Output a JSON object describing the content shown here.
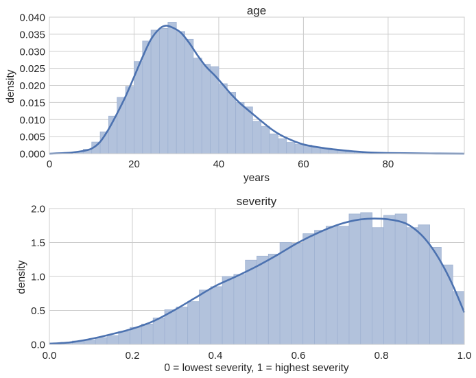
{
  "chart_data": [
    {
      "type": "bar",
      "subtype": "histogram-with-kde",
      "title": "age",
      "xlabel": "years",
      "ylabel": "density",
      "xlim": [
        0,
        98
      ],
      "ylim": [
        0,
        0.04
      ],
      "xticks": [
        0,
        20,
        40,
        60,
        80
      ],
      "xtick_labels": [
        "0",
        "20",
        "40",
        "60",
        "80"
      ],
      "yticks": [
        0,
        0.005,
        0.01,
        0.015,
        0.02,
        0.025,
        0.03,
        0.035,
        0.04
      ],
      "ytick_labels": [
        "0.000",
        "0.005",
        "0.010",
        "0.015",
        "0.020",
        "0.025",
        "0.030",
        "0.035",
        "0.040"
      ],
      "grid": true,
      "bars": {
        "bin_edges": [
          6,
          8,
          10,
          12,
          14,
          16,
          18,
          20,
          22,
          24,
          26,
          28,
          30,
          32,
          34,
          36,
          38,
          40,
          42,
          44,
          46,
          48,
          50,
          52,
          54,
          56,
          58,
          60,
          62,
          64,
          66,
          68,
          70,
          72,
          74,
          76,
          78,
          80
        ],
        "values": [
          0.0005,
          0.0013,
          0.0034,
          0.0064,
          0.011,
          0.0165,
          0.0197,
          0.027,
          0.033,
          0.0362,
          0.0367,
          0.0385,
          0.0358,
          0.0335,
          0.028,
          0.0262,
          0.0255,
          0.0205,
          0.018,
          0.015,
          0.0137,
          0.0095,
          0.008,
          0.0058,
          0.0044,
          0.0033,
          0.0027,
          0.0025,
          0.0018,
          0.0014,
          0.0012,
          0.0009,
          0.0007,
          0.0005,
          0.0003,
          0.0002,
          0.0001
        ]
      },
      "kde": {
        "x": [
          0,
          5,
          8,
          10,
          12,
          14,
          16,
          18,
          20,
          22,
          24,
          26,
          27.5,
          29,
          31,
          33,
          35,
          37,
          39,
          41,
          43,
          45,
          47,
          50,
          53,
          56,
          60,
          65,
          70,
          75,
          80,
          90,
          98
        ],
        "y": [
          0,
          0.0003,
          0.0008,
          0.0015,
          0.0035,
          0.0072,
          0.0118,
          0.0168,
          0.0225,
          0.0283,
          0.0335,
          0.0366,
          0.0375,
          0.037,
          0.0355,
          0.0325,
          0.0288,
          0.0255,
          0.023,
          0.0202,
          0.0173,
          0.0148,
          0.0127,
          0.0096,
          0.0067,
          0.0046,
          0.0027,
          0.0016,
          0.0009,
          0.0004,
          0.0002,
          5e-05,
          0
        ]
      },
      "color": "#4c72b0",
      "bar_fill": "#b2c2dc"
    },
    {
      "type": "bar",
      "subtype": "histogram-with-kde",
      "title": "severity",
      "xlabel": "0 = lowest severity, 1 = highest severity",
      "ylabel": "density",
      "xlim": [
        0,
        1
      ],
      "ylim": [
        0,
        2
      ],
      "xticks": [
        0,
        0.2,
        0.4,
        0.6,
        0.8,
        1.0
      ],
      "xtick_labels": [
        "0.0",
        "0.2",
        "0.4",
        "0.6",
        "0.8",
        "1.0"
      ],
      "yticks": [
        0,
        0.5,
        1.0,
        1.5,
        2.0
      ],
      "ytick_labels": [
        "0.0",
        "0.5",
        "1.0",
        "1.5",
        "2.0"
      ],
      "grid": true,
      "bars": {
        "bin_edges": [
          0,
          0.0278,
          0.0556,
          0.0833,
          0.1111,
          0.1389,
          0.1667,
          0.1944,
          0.2222,
          0.25,
          0.2778,
          0.3056,
          0.3333,
          0.3611,
          0.3889,
          0.4167,
          0.4444,
          0.4722,
          0.5,
          0.5278,
          0.5556,
          0.5833,
          0.6111,
          0.6389,
          0.6667,
          0.6944,
          0.7222,
          0.75,
          0.7778,
          0.8056,
          0.8333,
          0.8611,
          0.8889,
          0.9167,
          0.9444,
          0.9722,
          1.0
        ],
        "values": [
          0.02,
          0.03,
          0.05,
          0.06,
          0.1,
          0.13,
          0.19,
          0.25,
          0.3,
          0.39,
          0.51,
          0.55,
          0.63,
          0.8,
          0.85,
          1.0,
          1.03,
          1.24,
          1.3,
          1.33,
          1.5,
          1.49,
          1.63,
          1.68,
          1.74,
          1.74,
          1.92,
          1.94,
          1.72,
          1.9,
          1.92,
          1.72,
          1.76,
          1.43,
          1.17,
          0.78
        ]
      },
      "kde": {
        "x": [
          0,
          0.05,
          0.1,
          0.15,
          0.2,
          0.25,
          0.3,
          0.35,
          0.4,
          0.45,
          0.5,
          0.55,
          0.6,
          0.65,
          0.7,
          0.75,
          0.8,
          0.85,
          0.88,
          0.91,
          0.94,
          0.97,
          1.0
        ],
        "y": [
          0.01,
          0.03,
          0.08,
          0.15,
          0.23,
          0.34,
          0.5,
          0.68,
          0.86,
          1.0,
          1.15,
          1.32,
          1.5,
          1.65,
          1.77,
          1.84,
          1.85,
          1.8,
          1.7,
          1.52,
          1.25,
          0.9,
          0.47
        ]
      },
      "color": "#4c72b0",
      "bar_fill": "#b2c2dc"
    }
  ],
  "colors": {
    "grid": "#cccccc",
    "axis": "#262626",
    "background": "#ffffff"
  }
}
